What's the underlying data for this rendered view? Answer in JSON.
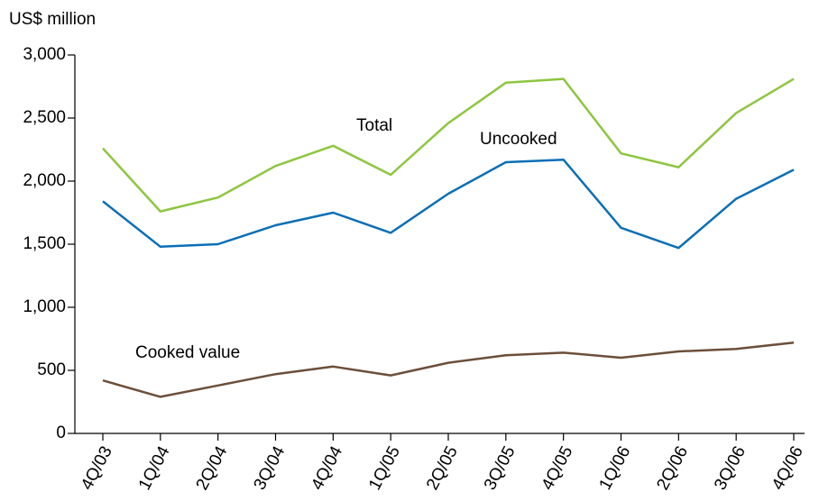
{
  "chart_data": {
    "type": "line",
    "y_axis_label": "US$ million",
    "categories": [
      "4Q/03",
      "1Q/04",
      "2Q/04",
      "3Q/04",
      "4Q/04",
      "1Q/05",
      "2Q/05",
      "3Q/05",
      "4Q/05",
      "1Q/06",
      "2Q/06",
      "3Q/06",
      "4Q/06"
    ],
    "series": [
      {
        "name": "Total",
        "color": "#8dc63f",
        "values": [
          2260,
          1760,
          1870,
          2120,
          2280,
          2050,
          2460,
          2780,
          2810,
          2220,
          2110,
          2540,
          2810
        ]
      },
      {
        "name": "Uncooked",
        "color": "#0a6fb5",
        "values": [
          1840,
          1480,
          1500,
          1650,
          1750,
          1590,
          1900,
          2150,
          2170,
          1630,
          1470,
          1860,
          2090
        ]
      },
      {
        "name": "Cooked value",
        "color": "#6b4f3a",
        "values": [
          420,
          290,
          380,
          470,
          530,
          460,
          560,
          620,
          640,
          600,
          650,
          670,
          720
        ]
      }
    ],
    "ylim": [
      0,
      3000
    ],
    "yticks": [
      0,
      500,
      {
        "value": 1000,
        "label": "1,000"
      },
      {
        "value": 1500,
        "label": "1,500"
      },
      {
        "value": 2000,
        "label": "2,000"
      },
      {
        "value": 2500,
        "label": "2,500"
      },
      {
        "value": 3000,
        "label": "3,000"
      }
    ],
    "grid": false
  }
}
